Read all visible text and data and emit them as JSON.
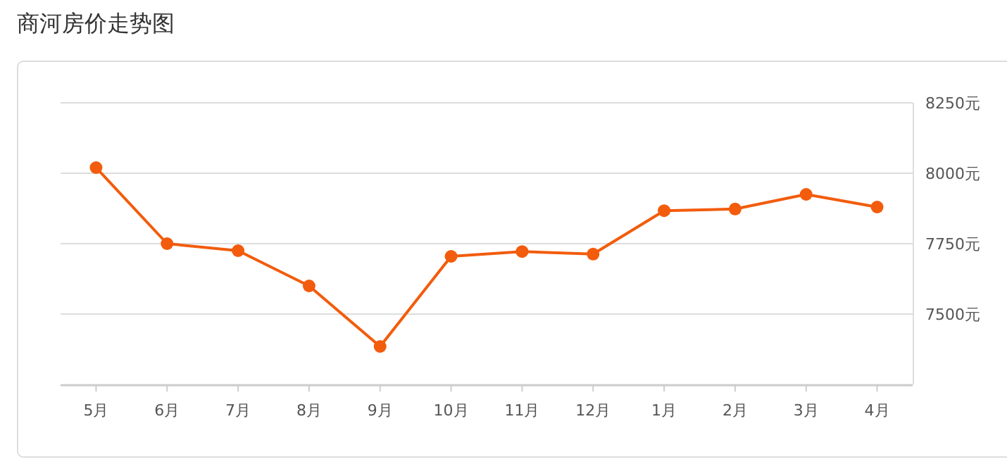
{
  "chart_data": {
    "type": "line",
    "title": "商河房价走势图",
    "categories": [
      "5月",
      "6月",
      "7月",
      "8月",
      "9月",
      "10月",
      "11月",
      "12月",
      "1月",
      "2月",
      "3月",
      "4月"
    ],
    "series": [
      {
        "color": "#f25c0c",
        "values": [
          8020,
          7750,
          7725,
          7600,
          7385,
          7705,
          7722,
          7713,
          7867,
          7873,
          7925,
          7880
        ]
      }
    ],
    "ylim": [
      7250,
      8250
    ],
    "yticks": [
      {
        "value": 7500,
        "label": "7500元"
      },
      {
        "value": 7750,
        "label": "7750元"
      },
      {
        "value": 8000,
        "label": "8000元"
      },
      {
        "value": 8250,
        "label": "8250元"
      }
    ],
    "grid": "y",
    "marker": "circle",
    "line_style": "solid"
  }
}
